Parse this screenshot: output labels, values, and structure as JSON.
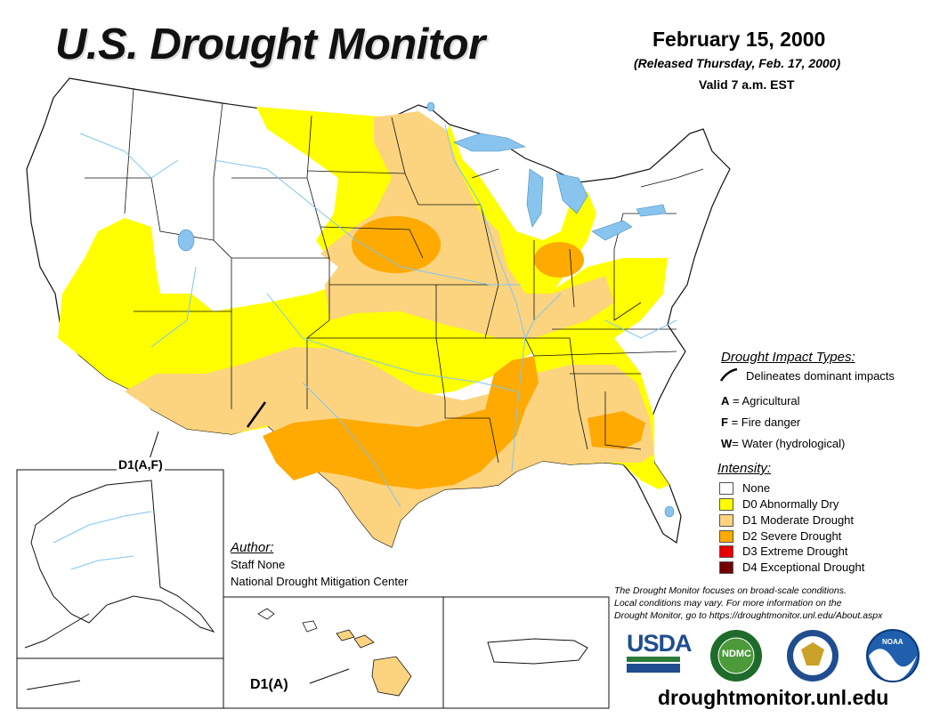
{
  "header": {
    "title": "U.S. Drought Monitor",
    "date": "February 15, 2000",
    "released": "(Released Thursday, Feb. 17, 2000)",
    "valid": "Valid 7 a.m. EST"
  },
  "impact_types": {
    "title": "Drought Impact Types:",
    "delineates": "Delineates dominant impacts",
    "items": [
      {
        "code": "A",
        "label": " = Agricultural"
      },
      {
        "code": "F",
        "label": " = Fire danger"
      },
      {
        "code": "W",
        "label": "= Water (hydrological)"
      }
    ]
  },
  "intensity": {
    "title": "Intensity:",
    "levels": [
      {
        "label": "None",
        "color": "#ffffff"
      },
      {
        "label": "D0 Abnormally Dry",
        "color": "#ffff00"
      },
      {
        "label": "D1 Moderate Drought",
        "color": "#fcd37f"
      },
      {
        "label": "D2 Severe Drought",
        "color": "#ffaa00"
      },
      {
        "label": "D3 Extreme Drought",
        "color": "#e60000"
      },
      {
        "label": "D4 Exceptional Drought",
        "color": "#730000"
      }
    ]
  },
  "author": {
    "title": "Author:",
    "name": "Staff None",
    "org": "National Drought Mitigation Center"
  },
  "note": {
    "line1": "The Drought Monitor focuses on broad-scale conditions.",
    "line2": "Local conditions may vary. For more information on the",
    "line3": "Drought Monitor, go to https://droughtmonitor.unl.edu/About.aspx"
  },
  "map_labels": {
    "southwest": "D1(A,F)",
    "hawaii": "D1(A)"
  },
  "logos": {
    "usda": "USDA",
    "ndmc": "NDMC",
    "commerce": "dept-of-commerce-seal",
    "noaa": "NOAA"
  },
  "website": "droughtmonitor.unl.edu",
  "colors": {
    "water": "#7fc6f0",
    "water_body": "#88c4ee",
    "border": "#111111"
  }
}
